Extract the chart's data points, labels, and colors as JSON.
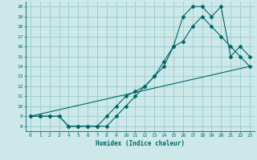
{
  "xlabel": "Humidex (Indice chaleur)",
  "bg_color": "#cce8e8",
  "grid_color": "#99cccc",
  "line_color": "#006666",
  "xlim": [
    -0.5,
    23.5
  ],
  "ylim": [
    7.5,
    20.5
  ],
  "xticks": [
    0,
    1,
    2,
    3,
    4,
    5,
    6,
    7,
    8,
    9,
    10,
    11,
    12,
    13,
    14,
    15,
    16,
    17,
    18,
    19,
    20,
    21,
    22,
    23
  ],
  "yticks": [
    8,
    9,
    10,
    11,
    12,
    13,
    14,
    15,
    16,
    17,
    18,
    19,
    20
  ],
  "line1_x": [
    0,
    1,
    2,
    3,
    4,
    5,
    6,
    7,
    8,
    9,
    10,
    11,
    12,
    13,
    14,
    15,
    16,
    17,
    18,
    19,
    20,
    21,
    22,
    23
  ],
  "line1_y": [
    9,
    9,
    9,
    9,
    8,
    8,
    8,
    8,
    8,
    9,
    10,
    11,
    12,
    13,
    14,
    16,
    19,
    20,
    20,
    19,
    20,
    15,
    16,
    15
  ],
  "line2_x": [
    0,
    1,
    2,
    3,
    4,
    5,
    6,
    7,
    8,
    9,
    10,
    11,
    12,
    13,
    14,
    15,
    16,
    17,
    18,
    19,
    20,
    21,
    22,
    23
  ],
  "line2_y": [
    9,
    9,
    9,
    9,
    8,
    8,
    8,
    8,
    9,
    10,
    11,
    11.5,
    12,
    13,
    14.5,
    16,
    16.5,
    18,
    19,
    18,
    17,
    16,
    15,
    14
  ],
  "line3_x": [
    0,
    23
  ],
  "line3_y": [
    9,
    14
  ]
}
